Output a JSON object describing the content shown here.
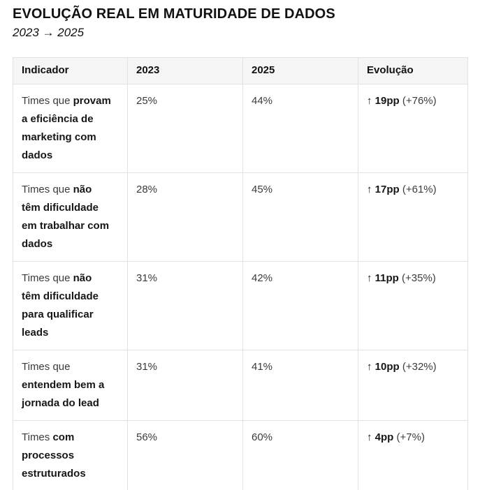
{
  "theme": {
    "header_bg": "#f5f5f6",
    "border_color": "#e2e2e2",
    "text_color": "#3b3b3b",
    "bold_color": "#161616",
    "title_color": "#111111"
  },
  "header": {
    "title": "EVOLUÇÃO REAL EM MATURIDADE DE DADOS",
    "subtitle": "2023 → 2025"
  },
  "table": {
    "columns": [
      "Indicador",
      "2023",
      "2025",
      "Evolução"
    ],
    "rows": [
      {
        "indicator_prefix": "Times que ",
        "indicator_bold": "provam\na eficiência de\nmarketing com\ndados",
        "v2023": "25%",
        "v2025": "44%",
        "evolution_bold": "↑ 19pp",
        "evolution_rest": " (+76%)"
      },
      {
        "indicator_prefix": "Times que ",
        "indicator_bold": "não\ntêm dificuldade\nem trabalhar com\ndados",
        "v2023": "28%",
        "v2025": "45%",
        "evolution_bold": "↑ 17pp",
        "evolution_rest": " (+61%)"
      },
      {
        "indicator_prefix": "Times que ",
        "indicator_bold": "não\ntêm dificuldade\npara qualificar\nleads",
        "v2023": "31%",
        "v2025": "42%",
        "evolution_bold": "↑ 11pp",
        "evolution_rest": " (+35%)"
      },
      {
        "indicator_prefix": "Times que\n",
        "indicator_bold": "entendem bem a\njornada do lead",
        "v2023": "31%",
        "v2025": "41%",
        "evolution_bold": "↑ 10pp",
        "evolution_rest": " (+32%)"
      },
      {
        "indicator_prefix": "Times ",
        "indicator_bold": "com\nprocessos\nestruturados",
        "v2023": "56%",
        "v2025": "60%",
        "evolution_bold": "↑ 4pp",
        "evolution_rest": " (+7%)"
      }
    ]
  },
  "chart_data": {
    "type": "table",
    "title": "EVOLUÇÃO REAL EM MATURIDADE DE DADOS",
    "subtitle": "2023 → 2025",
    "columns": [
      "Indicador",
      "2023",
      "2025",
      "Evolução"
    ],
    "rows": [
      [
        "Times que provam a eficiência de marketing com dados",
        "25%",
        "44%",
        "↑ 19pp (+76%)"
      ],
      [
        "Times que não têm dificuldade em trabalhar com dados",
        "28%",
        "45%",
        "↑ 17pp (+61%)"
      ],
      [
        "Times que não têm dificuldade para qualificar leads",
        "31%",
        "42%",
        "↑ 11pp (+35%)"
      ],
      [
        "Times que entendem bem a jornada do lead",
        "31%",
        "41%",
        "↑ 10pp (+32%)"
      ],
      [
        "Times com processos estruturados",
        "56%",
        "60%",
        "↑ 4pp (+7%)"
      ]
    ],
    "values_2023": [
      25,
      28,
      31,
      31,
      56
    ],
    "values_2025": [
      44,
      45,
      42,
      41,
      60
    ],
    "delta_pp": [
      19,
      17,
      11,
      10,
      4
    ],
    "delta_percent": [
      76,
      61,
      35,
      32,
      7
    ]
  }
}
